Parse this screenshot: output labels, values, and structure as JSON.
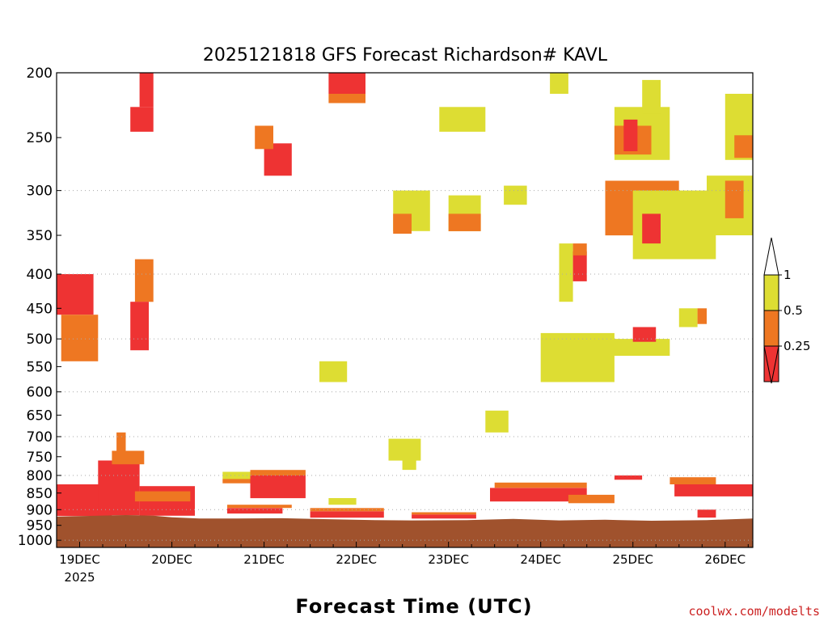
{
  "chart_data": {
    "type": "heatmap",
    "title": "2025121818 GFS Forecast Richardson# KAVL",
    "xlabel": "Forecast Time (UTC)",
    "ylabel": "",
    "credit": "coolwx.com/modelts",
    "x_ticks": [
      "19DEC",
      "20DEC",
      "21DEC",
      "22DEC",
      "23DEC",
      "24DEC",
      "25DEC",
      "26DEC"
    ],
    "x_year_label": "2025",
    "x_range_days": [
      -0.25,
      7.3
    ],
    "y_ticks": [
      "200",
      "250",
      "300",
      "350",
      "400",
      "450",
      "500",
      "550",
      "600",
      "650",
      "700",
      "750",
      "800",
      "850",
      "900",
      "950",
      "1000"
    ],
    "y_range_hpa": [
      200,
      1025
    ],
    "y_scale": "log pressure",
    "grid_dashed_levels": [
      300,
      400,
      500,
      600,
      700,
      800,
      900,
      1000
    ],
    "legend": {
      "placement": "right",
      "labels": [
        "1",
        "0.5",
        "0.25"
      ],
      "bins": [
        {
          "range": "0.5-1",
          "color": "#dddd33"
        },
        {
          "range": "0.25-0.5",
          "color": "#ee7722"
        },
        {
          "range": "<0.25",
          "color": "#ee3333"
        }
      ],
      "over_color": "#ffffff",
      "under_color": "#ee3333"
    },
    "colors": {
      "low": "#ee3333",
      "mid": "#ee7722",
      "high": "#dddd33",
      "ground": "#a0522d"
    },
    "surface_pressure_hpa": [
      [
        -0.25,
        922
      ],
      [
        0.2,
        919
      ],
      [
        0.5,
        917
      ],
      [
        0.8,
        919
      ],
      [
        1.0,
        924
      ],
      [
        1.3,
        928
      ],
      [
        1.7,
        928
      ],
      [
        2.2,
        927
      ],
      [
        2.7,
        930
      ],
      [
        3.2,
        933
      ],
      [
        3.6,
        934
      ],
      [
        4.2,
        933
      ],
      [
        4.7,
        929
      ],
      [
        5.2,
        934
      ],
      [
        5.7,
        932
      ],
      [
        6.2,
        935
      ],
      [
        6.8,
        933
      ],
      [
        7.3,
        928
      ]
    ],
    "regions": [
      {
        "category": "low",
        "day_start": -0.25,
        "day_end": 0.35,
        "p_top": 825,
        "p_bottom": 920
      },
      {
        "category": "low",
        "day_start": 0.2,
        "day_end": 0.65,
        "p_top": 760,
        "p_bottom": 918
      },
      {
        "category": "low",
        "day_start": 0.65,
        "day_end": 1.25,
        "p_top": 830,
        "p_bottom": 919
      },
      {
        "category": "mid",
        "day_start": 0.35,
        "day_end": 0.7,
        "p_top": 735,
        "p_bottom": 770
      },
      {
        "category": "mid",
        "day_start": 0.4,
        "day_end": 0.5,
        "p_top": 690,
        "p_bottom": 735
      },
      {
        "category": "mid",
        "day_start": 0.6,
        "day_end": 1.2,
        "p_top": 845,
        "p_bottom": 875
      },
      {
        "category": "high",
        "day_start": 1.55,
        "day_end": 1.9,
        "p_top": 790,
        "p_bottom": 810
      },
      {
        "category": "mid",
        "day_start": 1.55,
        "day_end": 1.9,
        "p_top": 810,
        "p_bottom": 822
      },
      {
        "category": "low",
        "day_start": 1.85,
        "day_end": 2.45,
        "p_top": 800,
        "p_bottom": 865
      },
      {
        "category": "mid",
        "day_start": 1.85,
        "day_end": 2.45,
        "p_top": 785,
        "p_bottom": 800
      },
      {
        "category": "low",
        "day_start": 1.6,
        "day_end": 2.2,
        "p_top": 895,
        "p_bottom": 912
      },
      {
        "category": "mid",
        "day_start": 1.6,
        "day_end": 2.3,
        "p_top": 885,
        "p_bottom": 895
      },
      {
        "category": "low",
        "day_start": 2.5,
        "day_end": 3.3,
        "p_top": 905,
        "p_bottom": 925
      },
      {
        "category": "mid",
        "day_start": 2.5,
        "day_end": 3.3,
        "p_top": 895,
        "p_bottom": 905
      },
      {
        "category": "high",
        "day_start": 2.7,
        "day_end": 3.0,
        "p_top": 865,
        "p_bottom": 885
      },
      {
        "category": "low",
        "day_start": 3.6,
        "day_end": 4.3,
        "p_top": 915,
        "p_bottom": 928
      },
      {
        "category": "mid",
        "day_start": 3.6,
        "day_end": 4.3,
        "p_top": 908,
        "p_bottom": 915
      },
      {
        "category": "low",
        "day_start": 4.45,
        "day_end": 5.5,
        "p_top": 835,
        "p_bottom": 875
      },
      {
        "category": "mid",
        "day_start": 4.5,
        "day_end": 5.5,
        "p_top": 820,
        "p_bottom": 835
      },
      {
        "category": "mid",
        "day_start": 5.3,
        "day_end": 5.8,
        "p_top": 855,
        "p_bottom": 880
      },
      {
        "category": "low",
        "day_start": 5.8,
        "day_end": 6.1,
        "p_top": 800,
        "p_bottom": 812
      },
      {
        "category": "low",
        "day_start": 6.45,
        "day_end": 7.3,
        "p_top": 825,
        "p_bottom": 860
      },
      {
        "category": "mid",
        "day_start": 6.4,
        "day_end": 6.9,
        "p_top": 805,
        "p_bottom": 825
      },
      {
        "category": "low",
        "day_start": 6.7,
        "day_end": 6.9,
        "p_top": 900,
        "p_bottom": 925
      },
      {
        "category": "high",
        "day_start": 3.35,
        "day_end": 3.7,
        "p_top": 705,
        "p_bottom": 760
      },
      {
        "category": "high",
        "day_start": 3.5,
        "day_end": 3.65,
        "p_top": 760,
        "p_bottom": 785
      },
      {
        "category": "high",
        "day_start": 2.6,
        "day_end": 2.9,
        "p_top": 540,
        "p_bottom": 580
      },
      {
        "category": "high",
        "day_start": 4.4,
        "day_end": 4.65,
        "p_top": 640,
        "p_bottom": 690
      },
      {
        "category": "high",
        "day_start": 5.0,
        "day_end": 5.8,
        "p_top": 490,
        "p_bottom": 580
      },
      {
        "category": "high",
        "day_start": 5.7,
        "day_end": 6.4,
        "p_top": 500,
        "p_bottom": 530
      },
      {
        "category": "low",
        "day_start": 6.0,
        "day_end": 6.25,
        "p_top": 480,
        "p_bottom": 505
      },
      {
        "category": "high",
        "day_start": 6.5,
        "day_end": 6.7,
        "p_top": 450,
        "p_bottom": 480
      },
      {
        "category": "mid",
        "day_start": 6.7,
        "day_end": 6.8,
        "p_top": 450,
        "p_bottom": 475
      },
      {
        "category": "high",
        "day_start": 5.2,
        "day_end": 5.35,
        "p_top": 360,
        "p_bottom": 440
      },
      {
        "category": "low",
        "day_start": 5.35,
        "day_end": 5.5,
        "p_top": 370,
        "p_bottom": 410
      },
      {
        "category": "mid",
        "day_start": 5.35,
        "day_end": 5.5,
        "p_top": 360,
        "p_bottom": 375
      },
      {
        "category": "mid",
        "day_start": 5.7,
        "day_end": 6.5,
        "p_top": 290,
        "p_bottom": 350
      },
      {
        "category": "high",
        "day_start": 6.0,
        "day_end": 6.9,
        "p_top": 300,
        "p_bottom": 380
      },
      {
        "category": "low",
        "day_start": 6.1,
        "day_end": 6.3,
        "p_top": 325,
        "p_bottom": 360
      },
      {
        "category": "high",
        "day_start": 6.8,
        "day_end": 7.3,
        "p_top": 285,
        "p_bottom": 350
      },
      {
        "category": "mid",
        "day_start": 7.0,
        "day_end": 7.2,
        "p_top": 290,
        "p_bottom": 330
      },
      {
        "category": "high",
        "day_start": 5.8,
        "day_end": 6.4,
        "p_top": 225,
        "p_bottom": 270
      },
      {
        "category": "mid",
        "day_start": 5.8,
        "day_end": 6.2,
        "p_top": 240,
        "p_bottom": 265
      },
      {
        "category": "low",
        "day_start": 5.9,
        "day_end": 6.05,
        "p_top": 235,
        "p_bottom": 262
      },
      {
        "category": "high",
        "day_start": 6.1,
        "day_end": 6.3,
        "p_top": 205,
        "p_bottom": 230
      },
      {
        "category": "high",
        "day_start": 7.0,
        "day_end": 7.3,
        "p_top": 215,
        "p_bottom": 270
      },
      {
        "category": "mid",
        "day_start": 7.1,
        "day_end": 7.3,
        "p_top": 248,
        "p_bottom": 268
      },
      {
        "category": "high",
        "day_start": 5.1,
        "day_end": 5.3,
        "p_top": 200,
        "p_bottom": 215
      },
      {
        "category": "high",
        "day_start": 4.6,
        "day_end": 4.85,
        "p_top": 295,
        "p_bottom": 315
      },
      {
        "category": "high",
        "day_start": 4.0,
        "day_end": 4.35,
        "p_top": 305,
        "p_bottom": 345
      },
      {
        "category": "mid",
        "day_start": 4.0,
        "day_end": 4.35,
        "p_top": 325,
        "p_bottom": 345
      },
      {
        "category": "high",
        "day_start": 3.4,
        "day_end": 3.8,
        "p_top": 300,
        "p_bottom": 345
      },
      {
        "category": "mid",
        "day_start": 3.4,
        "day_end": 3.6,
        "p_top": 325,
        "p_bottom": 348
      },
      {
        "category": "high",
        "day_start": 3.9,
        "day_end": 4.4,
        "p_top": 225,
        "p_bottom": 245
      },
      {
        "category": "low",
        "day_start": 2.7,
        "day_end": 3.1,
        "p_top": 200,
        "p_bottom": 215
      },
      {
        "category": "mid",
        "day_start": 2.7,
        "day_end": 3.1,
        "p_top": 215,
        "p_bottom": 222
      },
      {
        "category": "low",
        "day_start": 2.0,
        "day_end": 2.3,
        "p_top": 255,
        "p_bottom": 285
      },
      {
        "category": "mid",
        "day_start": 1.9,
        "day_end": 2.1,
        "p_top": 240,
        "p_bottom": 260
      },
      {
        "category": "low",
        "day_start": 0.55,
        "day_end": 0.8,
        "p_top": 225,
        "p_bottom": 245
      },
      {
        "category": "low",
        "day_start": 0.65,
        "day_end": 0.8,
        "p_top": 200,
        "p_bottom": 225
      },
      {
        "category": "mid",
        "day_start": 0.6,
        "day_end": 0.8,
        "p_top": 380,
        "p_bottom": 440
      },
      {
        "category": "low",
        "day_start": 0.55,
        "day_end": 0.75,
        "p_top": 440,
        "p_bottom": 520
      },
      {
        "category": "low",
        "day_start": -0.25,
        "day_end": 0.15,
        "p_top": 400,
        "p_bottom": 460
      },
      {
        "category": "mid",
        "day_start": -0.2,
        "day_end": 0.2,
        "p_top": 460,
        "p_bottom": 540
      }
    ]
  }
}
